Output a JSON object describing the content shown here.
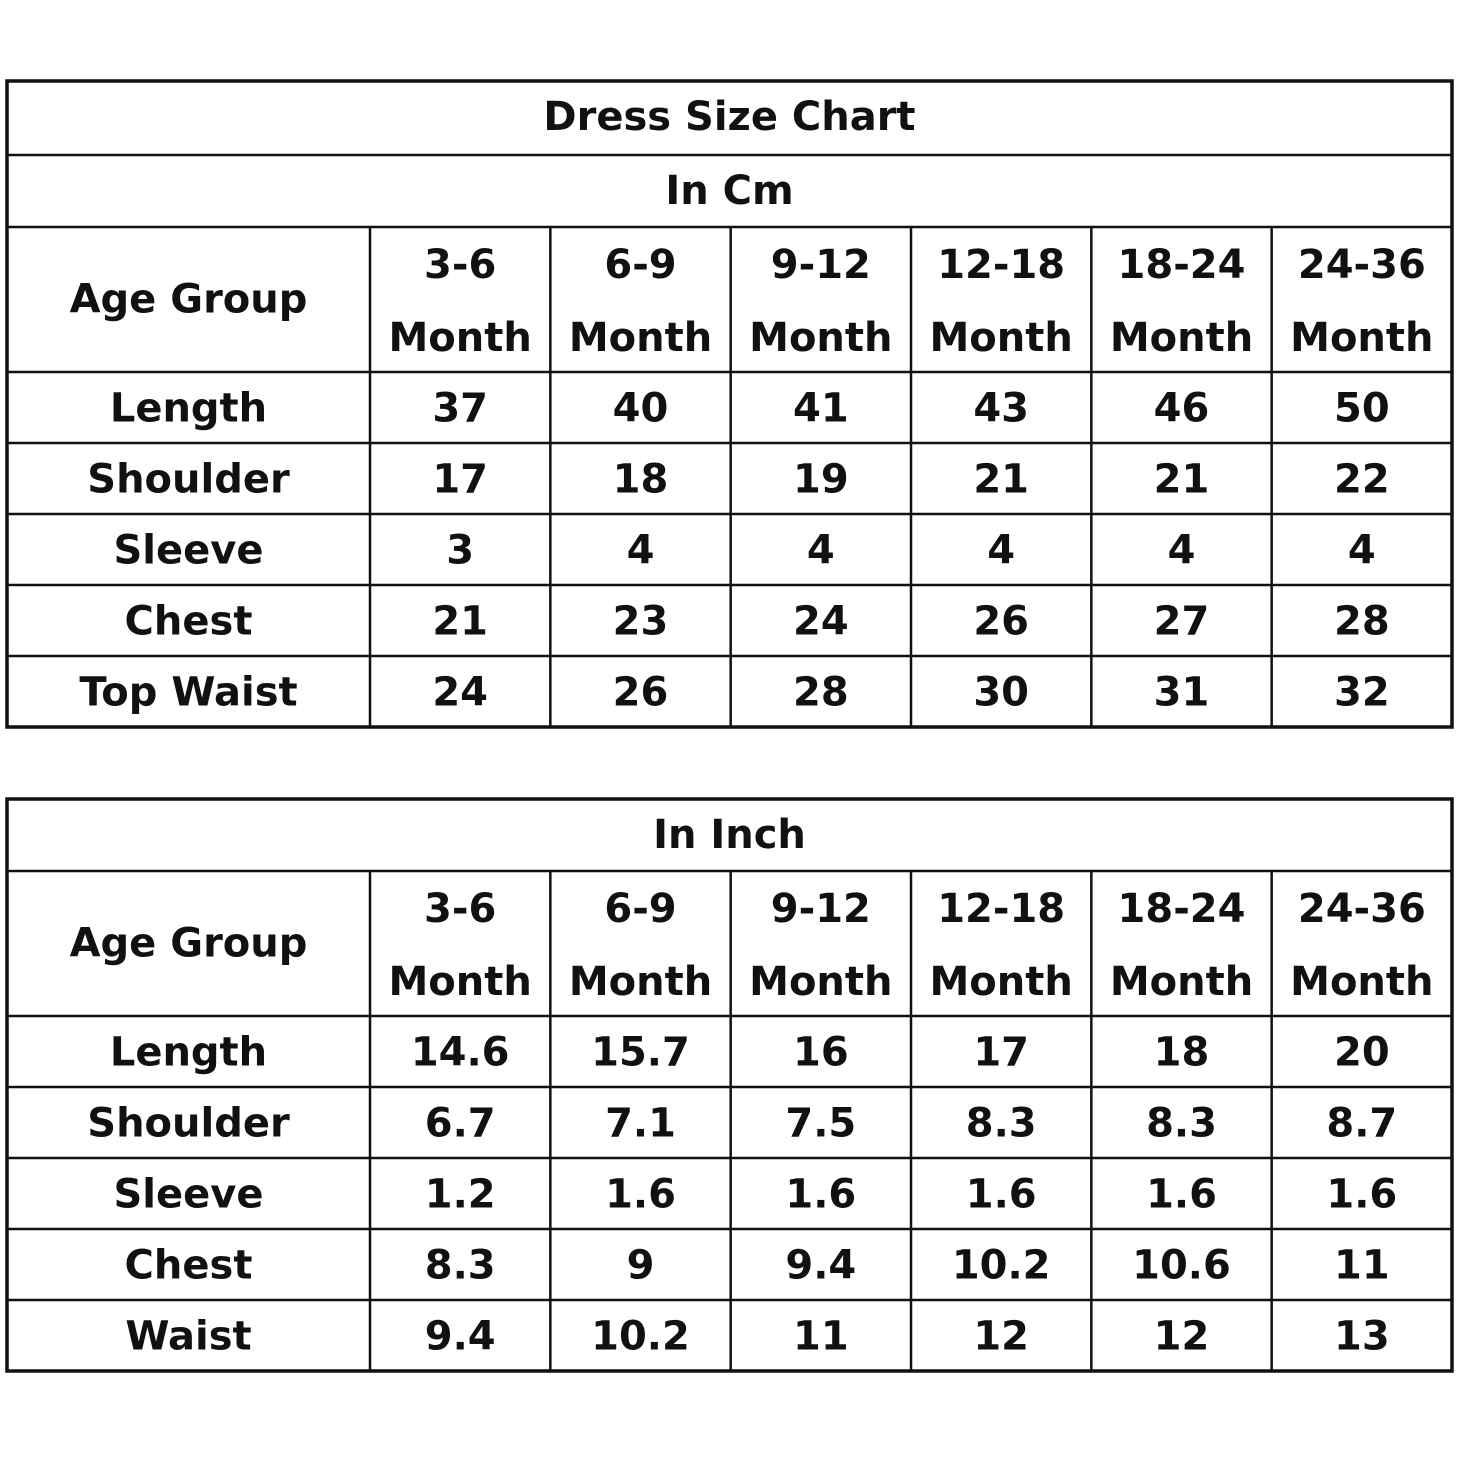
{
  "title": "Dress Size Chart",
  "tables": [
    {
      "unit": "In Cm",
      "header": {
        "label": "Age Group",
        "columns": [
          {
            "range": "3-6",
            "unit": "Month"
          },
          {
            "range": "6-9",
            "unit": "Month"
          },
          {
            "range": "9-12",
            "unit": "Month"
          },
          {
            "range": "12-18",
            "unit": "Month"
          },
          {
            "range": "18-24",
            "unit": "Month"
          },
          {
            "range": "24-36",
            "unit": "Month"
          }
        ]
      },
      "rows": [
        {
          "label": "Length",
          "values": [
            37,
            40,
            41,
            43,
            46,
            50
          ]
        },
        {
          "label": "Shoulder",
          "values": [
            17,
            18,
            19,
            21,
            21,
            22
          ]
        },
        {
          "label": "Sleeve",
          "values": [
            3,
            4,
            4,
            4,
            4,
            4
          ]
        },
        {
          "label": "Chest",
          "values": [
            21,
            23,
            24,
            26,
            27,
            28
          ]
        },
        {
          "label": "Top Waist",
          "values": [
            24,
            26,
            28,
            30,
            31,
            32
          ]
        }
      ]
    },
    {
      "unit": "In Inch",
      "header": {
        "label": "Age Group",
        "columns": [
          {
            "range": "3-6",
            "unit": "Month"
          },
          {
            "range": "6-9",
            "unit": "Month"
          },
          {
            "range": "9-12",
            "unit": "Month"
          },
          {
            "range": "12-18",
            "unit": "Month"
          },
          {
            "range": "18-24",
            "unit": "Month"
          },
          {
            "range": "24-36",
            "unit": "Month"
          }
        ]
      },
      "rows": [
        {
          "label": "Length",
          "values": [
            14.6,
            15.7,
            16,
            17,
            18,
            20
          ]
        },
        {
          "label": "Shoulder",
          "values": [
            6.7,
            7.1,
            7.5,
            8.3,
            8.3,
            8.7
          ]
        },
        {
          "label": "Sleeve",
          "values": [
            1.2,
            1.6,
            1.6,
            1.6,
            1.6,
            1.6
          ]
        },
        {
          "label": "Chest",
          "values": [
            8.3,
            9,
            9.4,
            10.2,
            10.6,
            11
          ]
        },
        {
          "label": "Waist",
          "values": [
            9.4,
            10.2,
            11,
            12,
            12,
            13
          ]
        }
      ]
    }
  ]
}
